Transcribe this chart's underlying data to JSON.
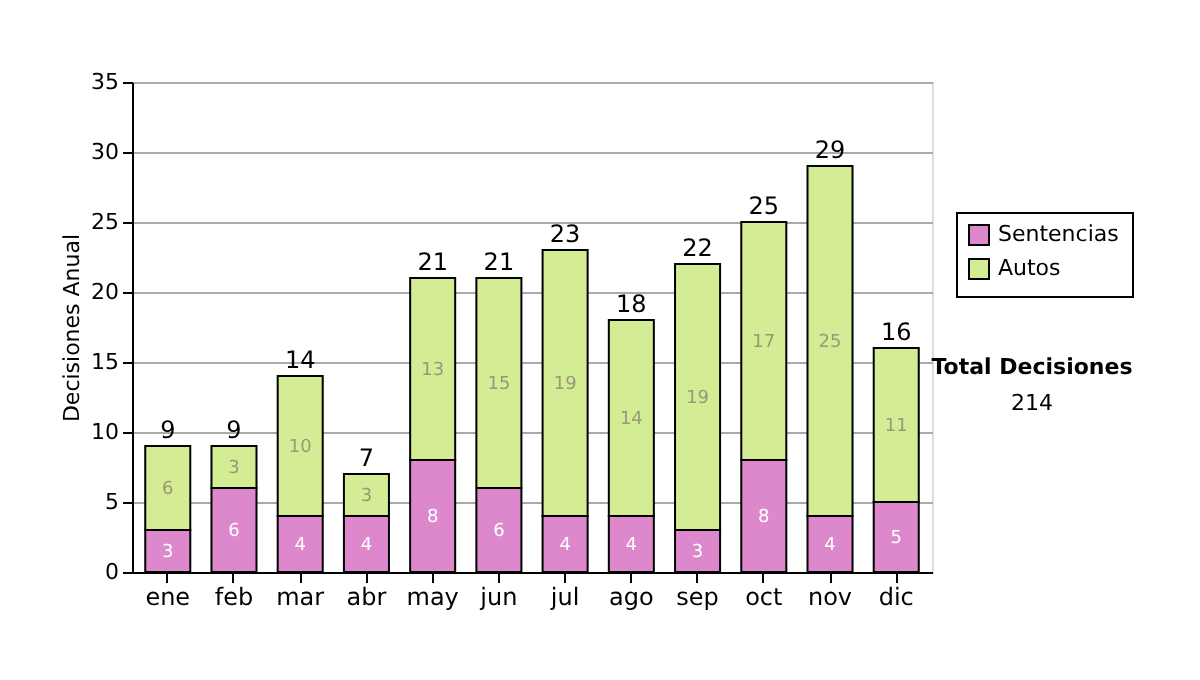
{
  "chart_data": {
    "type": "bar",
    "stacked": true,
    "ylabel": "Decisiones Anual",
    "categories": [
      "ene",
      "feb",
      "mar",
      "abr",
      "may",
      "jun",
      "jul",
      "ago",
      "sep",
      "oct",
      "nov",
      "dic"
    ],
    "series": [
      {
        "name": "Sentencias",
        "color": "#dd88cc",
        "values": [
          3,
          6,
          4,
          4,
          8,
          6,
          4,
          4,
          3,
          8,
          4,
          5
        ]
      },
      {
        "name": "Autos",
        "color": "#d4ec94",
        "values": [
          6,
          3,
          10,
          3,
          13,
          15,
          19,
          14,
          19,
          17,
          25,
          11
        ]
      }
    ],
    "totals": [
      "9",
      "9",
      "14",
      "7",
      "21",
      "21",
      "23",
      "18",
      "22",
      "25",
      "29",
      "16"
    ],
    "data_labels": true,
    "ylim": [
      0,
      35
    ],
    "yticks": [
      0,
      5,
      10,
      15,
      20,
      25,
      30,
      35
    ],
    "grid": "y",
    "legend": "right",
    "annotations": [
      "Total Decisiones",
      "214"
    ]
  }
}
